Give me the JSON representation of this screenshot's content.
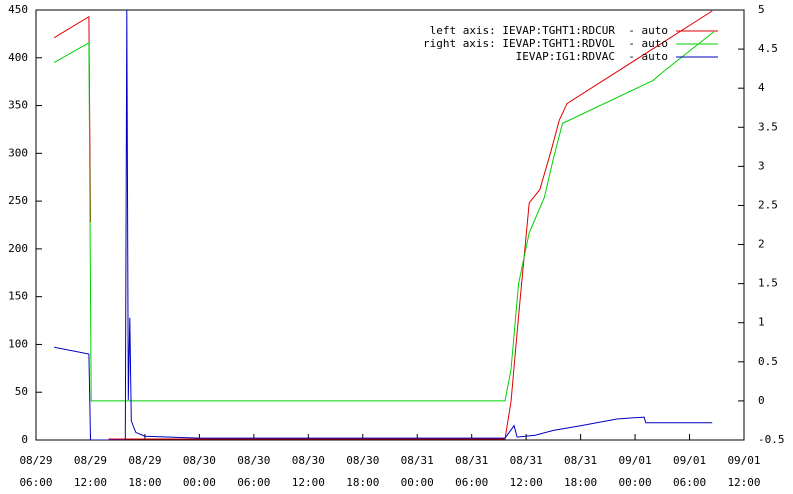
{
  "chart_data": {
    "type": "line",
    "ylim": [
      0,
      450
    ],
    "yticks": [
      0,
      50,
      100,
      150,
      200,
      250,
      300,
      350,
      400,
      450
    ],
    "y2lim": [
      -0.5,
      5
    ],
    "y2ticks": [
      -0.5,
      0,
      0.5,
      1,
      1.5,
      2,
      2.5,
      3,
      3.5,
      4,
      4.5,
      5
    ],
    "xlim": [
      "08/29 06:00",
      "09/01 12:00"
    ],
    "xticks": [
      "08/29 06:00",
      "08/29 12:00",
      "08/29 18:00",
      "08/30 00:00",
      "08/30 06:00",
      "08/30 12:00",
      "08/30 18:00",
      "08/31 00:00",
      "08/31 06:00",
      "08/31 12:00",
      "08/31 18:00",
      "09/01 00:00",
      "09/01 06:00",
      "09/01 12:00"
    ],
    "series": [
      {
        "name": "left axis: IEVAP:TGHT1:RDCUR  - auto",
        "color": "#e00000",
        "x": [
          "08/29 08:00",
          "08/29 11:50",
          "08/29 12:00",
          "08/29 12:01",
          "08/29 14:00",
          "08/31 09:40",
          "08/31 10:20",
          "08/31 11:10",
          "08/31 12:20",
          "08/31 13:30",
          "08/31 14:40",
          "08/31 15:40",
          "08/31 16:30",
          "09/01 08:30"
        ],
        "values": [
          421,
          443,
          228,
          null,
          1,
          1,
          40,
          130,
          248,
          262,
          300,
          335,
          352,
          449
        ]
      },
      {
        "name": "right axis: IEVAP:TGHT1:RDVOL  - auto",
        "color": "#00d000",
        "axis": "y2",
        "x": [
          "08/29 08:00",
          "08/29 11:50",
          "08/29 12:05",
          "08/31 09:40",
          "08/31 10:20",
          "08/31 11:10",
          "08/31 12:20",
          "08/31 14:00",
          "08/31 15:00",
          "08/31 16:00",
          "09/01 02:00",
          "09/01 03:00",
          "09/01 08:40"
        ],
        "values": [
          4.33,
          4.58,
          0,
          0,
          0.4,
          1.5,
          2.15,
          2.6,
          3.1,
          3.55,
          4.1,
          4.2,
          4.72
        ]
      },
      {
        "name": "IEVAP:IG1:RDVAC  - auto",
        "color": "#0000c0",
        "x": [
          "08/29 08:00",
          "08/29 11:50",
          "08/29 12:00",
          "08/29 15:50",
          "08/29 16:00",
          "08/29 16:10",
          "08/29 16:20",
          "08/29 16:30",
          "08/29 17:00",
          "08/29 18:00",
          "08/30 00:00",
          "08/31 09:40",
          "08/31 10:40",
          "08/31 11:00",
          "08/31 13:00",
          "08/31 15:00",
          "08/31 18:00",
          "08/31 22:00",
          "09/01 01:00",
          "09/01 01:10",
          "09/01 08:30"
        ],
        "values": [
          97,
          90,
          0,
          0,
          450,
          42,
          128,
          20,
          8,
          4,
          2,
          2,
          15,
          3,
          5,
          10,
          15,
          22,
          24,
          18,
          18
        ]
      }
    ]
  }
}
